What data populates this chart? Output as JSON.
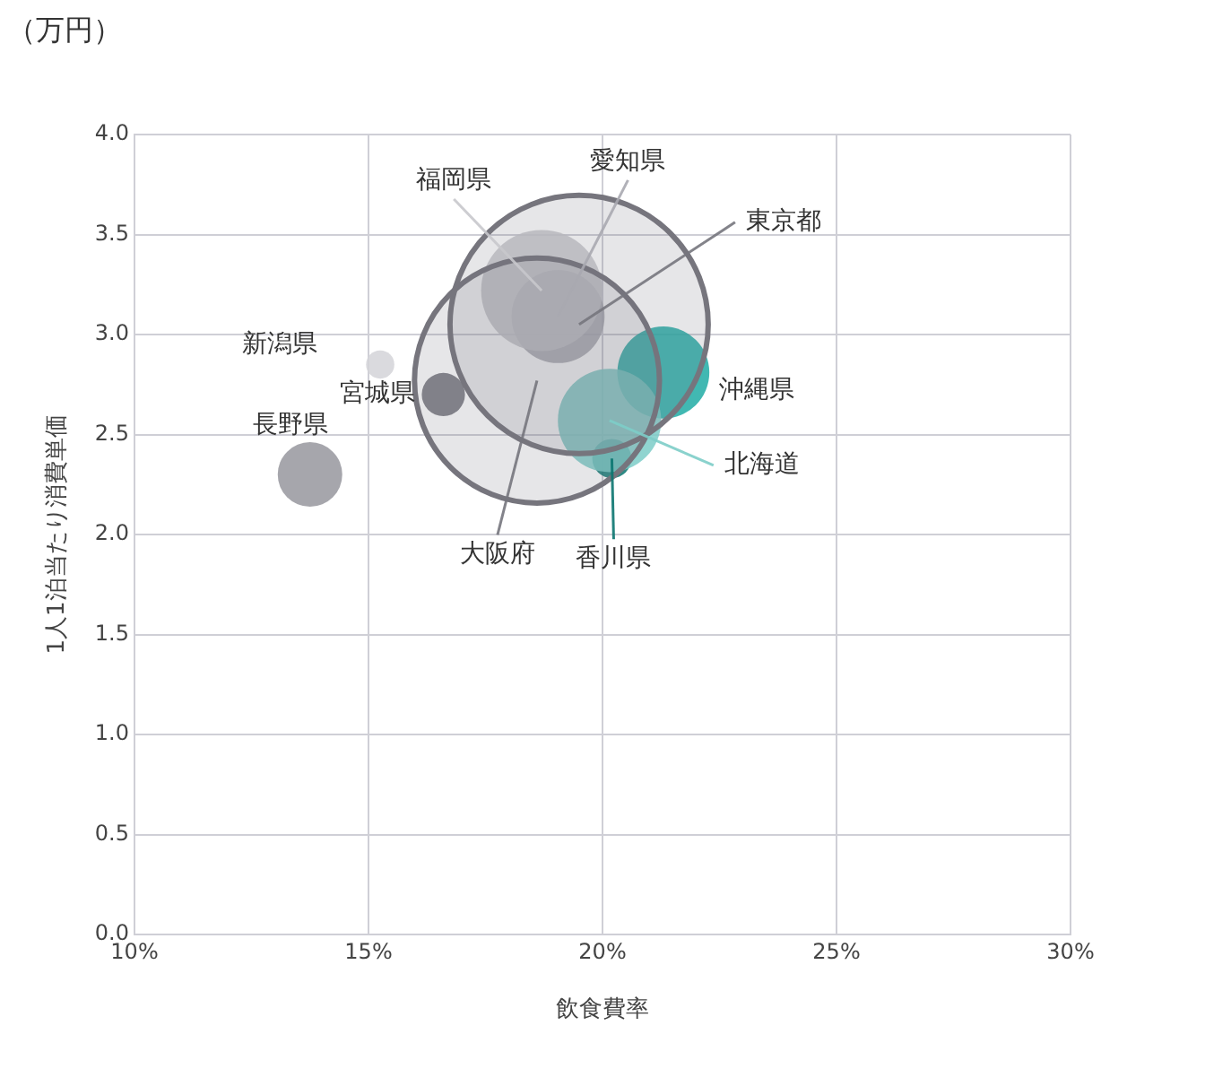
{
  "chart_data": {
    "type": "bubble",
    "xlabel": "飲食費率",
    "ylabel": "1人1泊当たり消費単価",
    "annotations": [
      "（万円）"
    ],
    "xlim": [
      10,
      30
    ],
    "xticks": [
      {
        "value": 10,
        "label": "10%"
      },
      {
        "value": 15,
        "label": "15%"
      },
      {
        "value": 20,
        "label": "20%"
      },
      {
        "value": 25,
        "label": "25%"
      },
      {
        "value": 30,
        "label": "30%"
      }
    ],
    "ylim": [
      0,
      4
    ],
    "yticks": [
      {
        "value": 0,
        "label": "0.0"
      },
      {
        "value": 0.5,
        "label": "0.5"
      },
      {
        "value": 1,
        "label": "1.0"
      },
      {
        "value": 1.5,
        "label": "1.5"
      },
      {
        "value": 2,
        "label": "2.0"
      },
      {
        "value": 2.5,
        "label": "2.5"
      },
      {
        "value": 3,
        "label": "3.0"
      },
      {
        "value": 3.5,
        "label": "3.5"
      },
      {
        "value": 4,
        "label": "4.0"
      }
    ],
    "grid": true,
    "legend": false,
    "marker": "circle",
    "series": [
      {
        "name": "東京都",
        "color": "#76757d",
        "x": [
          19.5
        ],
        "values": [
          3.05
        ],
        "sizes": [
          1
        ]
      },
      {
        "name": "大阪府",
        "color": "#76757d",
        "x": [
          18.6
        ],
        "values": [
          2.77
        ],
        "sizes": [
          0.9
        ]
      },
      {
        "name": "福岡県",
        "color": "#c8c8cc",
        "x": [
          18.7
        ],
        "values": [
          3.22
        ],
        "sizes": [
          0.22
        ]
      },
      {
        "name": "愛知県",
        "color": "#a9a9b0",
        "x": [
          19.05
        ],
        "values": [
          3.09
        ],
        "sizes": [
          0.13
        ]
      },
      {
        "name": "新潟県",
        "color": "#d4d4d8",
        "x": [
          15.25
        ],
        "values": [
          2.85
        ],
        "sizes": [
          0.012
        ]
      },
      {
        "name": "宮城県",
        "color": "#6f6e77",
        "x": [
          16.6
        ],
        "values": [
          2.7
        ],
        "sizes": [
          0.028
        ]
      },
      {
        "name": "長野県",
        "color": "#97969e",
        "x": [
          13.75
        ],
        "values": [
          2.3
        ],
        "sizes": [
          0.0625
        ]
      },
      {
        "name": "北海道",
        "color": "#7dcdc8",
        "x": [
          20.15
        ],
        "values": [
          2.57
        ],
        "sizes": [
          0.16
        ]
      },
      {
        "name": "沖縄県",
        "color": "#20aba5",
        "x": [
          21.3
        ],
        "values": [
          2.81
        ],
        "sizes": [
          0.127
        ]
      },
      {
        "name": "香川県",
        "color": "#0b7670",
        "x": [
          20.2
        ],
        "values": [
          2.38
        ],
        "sizes": [
          0.023
        ]
      }
    ]
  }
}
